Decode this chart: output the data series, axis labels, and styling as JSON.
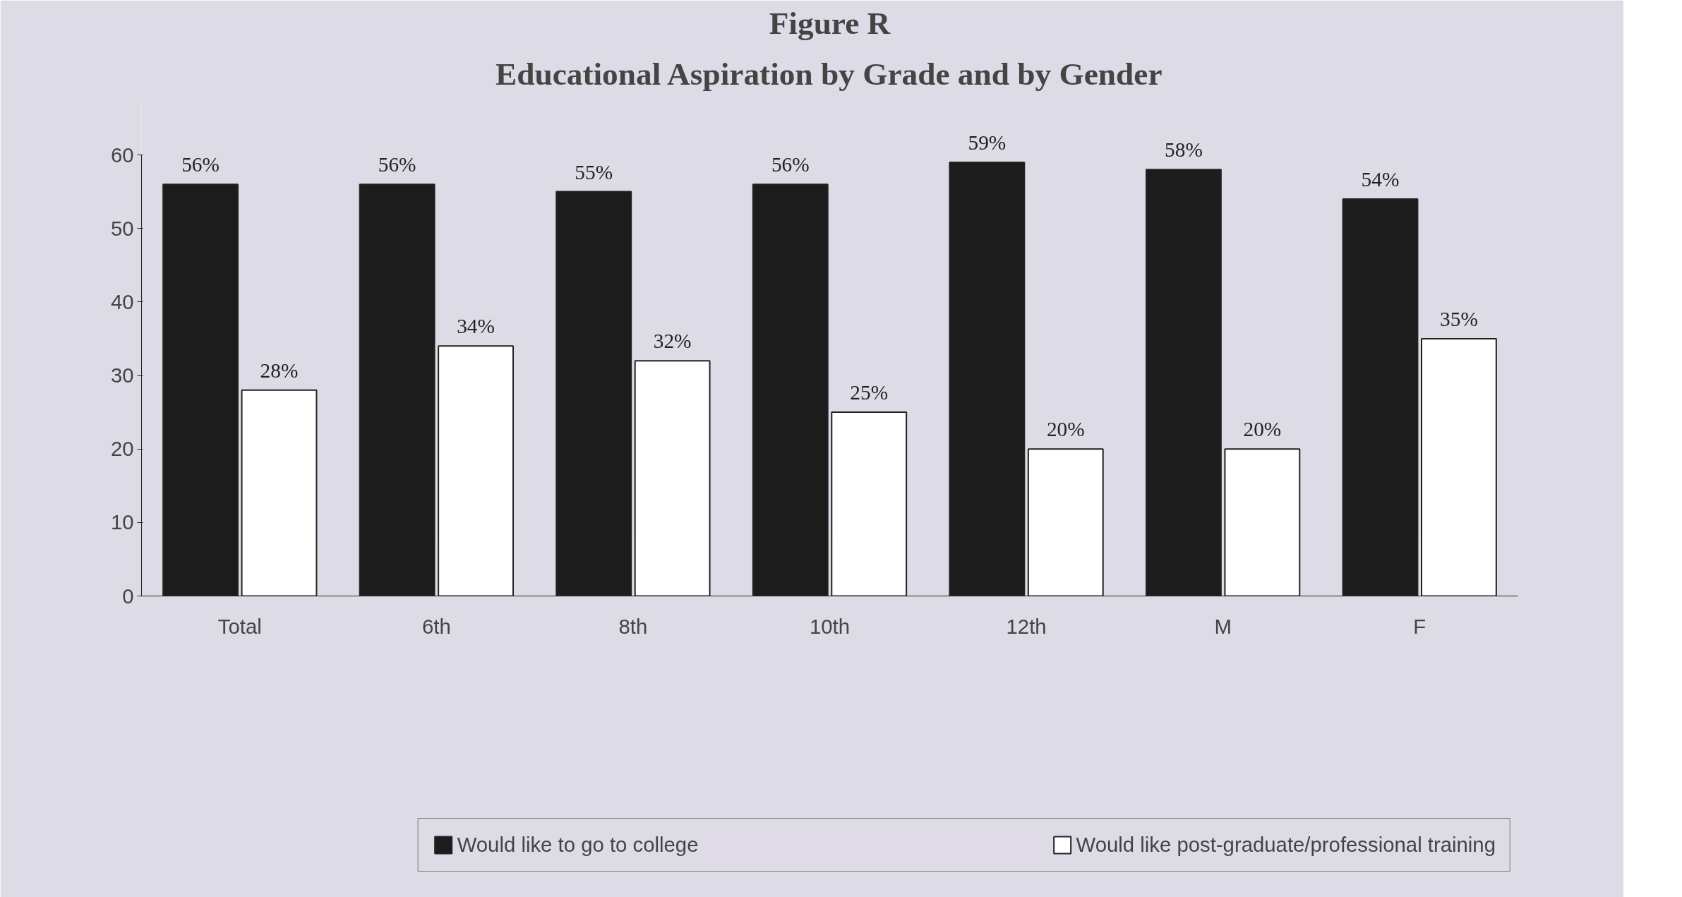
{
  "chart_data": {
    "type": "bar",
    "title": "Figure R",
    "subtitle": "Educational Aspiration by Grade and by Gender",
    "categories": [
      "Total",
      "6th",
      "8th",
      "10th",
      "12th",
      "M",
      "F"
    ],
    "series": [
      {
        "name": "Would like to go to college",
        "color": "#1c1c1c",
        "values": [
          56,
          56,
          55,
          56,
          59,
          58,
          54
        ],
        "value_labels": [
          "56%",
          "56%",
          "55%",
          "56%",
          "59%",
          "58%",
          "54%"
        ]
      },
      {
        "name": "Would like post-graduate/professional training",
        "color": "#ffffff",
        "values": [
          28,
          34,
          32,
          25,
          20,
          20,
          35
        ],
        "value_labels": [
          "28%",
          "34%",
          "32%",
          "25%",
          "20%",
          "20%",
          "35%"
        ]
      }
    ],
    "ylim": [
      0,
      60
    ],
    "yticks": [
      0,
      10,
      20,
      30,
      40,
      50,
      60
    ],
    "legend": "bottom"
  }
}
